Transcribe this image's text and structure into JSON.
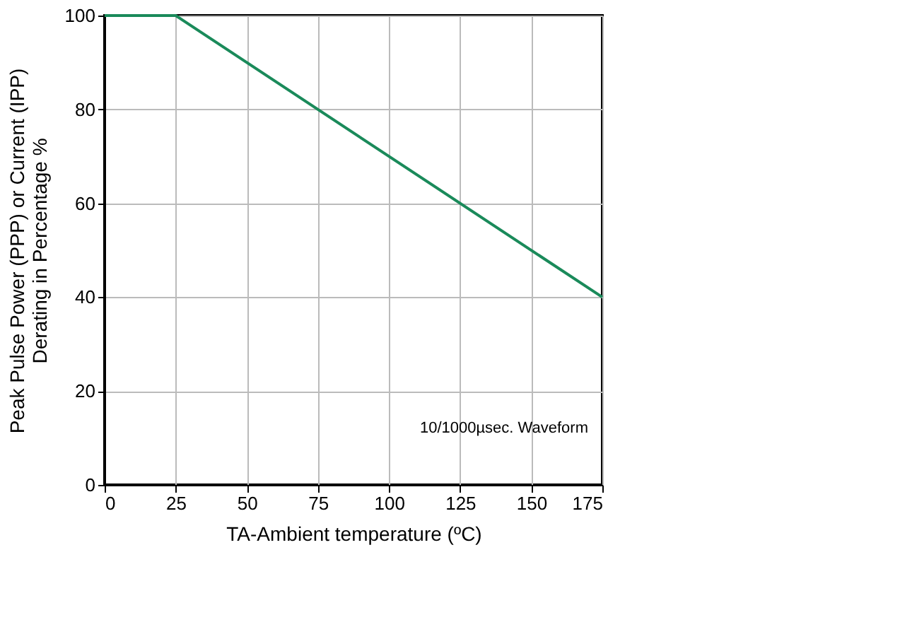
{
  "chart_data": {
    "type": "line",
    "xlabel": "TA-Ambient temperature (ºC)",
    "ylabel": "Peak Pulse Power (PPP) or Current (IPP)\nDerating in Percentage %",
    "series": [
      {
        "color": "#1a8a5a",
        "x": [
          0,
          25,
          175
        ],
        "values": [
          100,
          100,
          40
        ]
      }
    ],
    "xlim": [
      0,
      175
    ],
    "xticks": [
      0,
      25,
      50,
      75,
      100,
      125,
      150,
      175
    ],
    "ylim": [
      0,
      100
    ],
    "yticks": [
      0,
      20,
      40,
      60,
      80,
      100
    ],
    "grid": true,
    "marker": "none",
    "line_style": "solid",
    "annotations": [
      "10/1000µsec. Waveform"
    ]
  }
}
